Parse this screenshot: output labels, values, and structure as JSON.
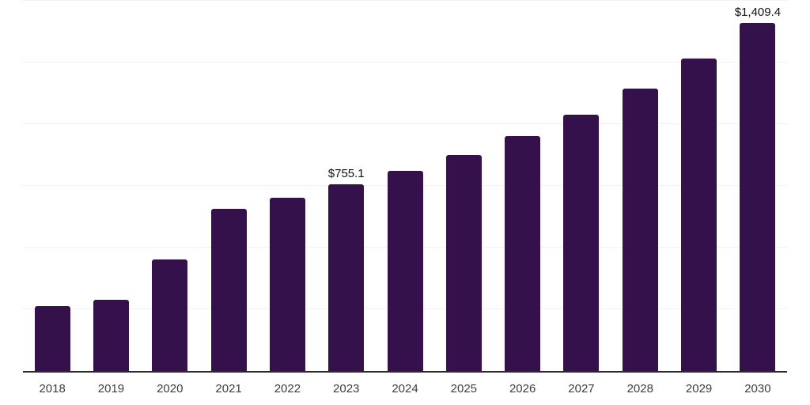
{
  "chart_data": {
    "type": "bar",
    "title": "",
    "xlabel": "",
    "ylabel": "",
    "categories": [
      "2018",
      "2019",
      "2020",
      "2021",
      "2022",
      "2023",
      "2024",
      "2025",
      "2026",
      "2027",
      "2028",
      "2029",
      "2030"
    ],
    "values": [
      262,
      289,
      452,
      656,
      702,
      755.1,
      812,
      875,
      953,
      1040,
      1145,
      1266,
      1409.4
    ],
    "value_labels": [
      "",
      "",
      "",
      "",
      "",
      "$755.1",
      "",
      "",
      "",
      "",
      "",
      "",
      "$1,409.4"
    ],
    "ylim": [
      0,
      1500
    ],
    "grid": true,
    "grid_step": 250,
    "legend_position": "none",
    "colors": {
      "bar": "#35114c",
      "gridline": "#f2f2f2",
      "axis_line": "#2b2b2b",
      "tick_label": "#3d3d3d",
      "data_label": "#111111"
    }
  }
}
